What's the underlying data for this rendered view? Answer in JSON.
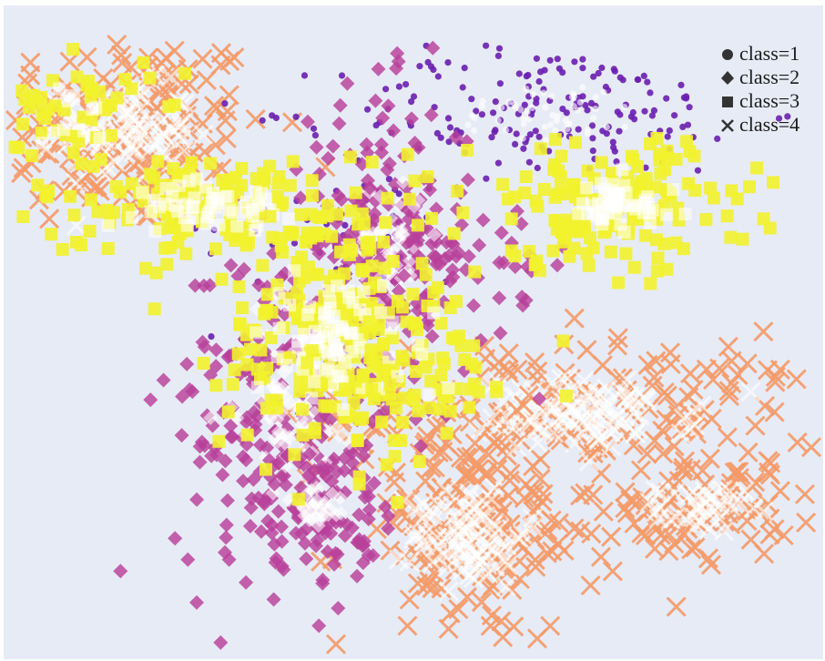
{
  "chart_data": {
    "type": "scatter",
    "title": "",
    "xlabel": "",
    "ylabel": "",
    "axes_visible": false,
    "grid": false,
    "legend": {
      "position": "top-right",
      "entries": [
        {
          "label": "class=1",
          "marker": "circle"
        },
        {
          "label": "class=2",
          "marker": "diamond"
        },
        {
          "label": "class=3",
          "marker": "square"
        },
        {
          "label": "class=4",
          "marker": "x"
        }
      ]
    },
    "colors": {
      "class=1": "#6a1fb0",
      "class=2": "#b8409a",
      "class=3": "#f2f22e",
      "class=4": "#f49a68",
      "background": "#e7ebf6"
    },
    "xlim": [
      0,
      100
    ],
    "ylim": [
      0,
      100
    ],
    "clusters": [
      {
        "series": "class=4",
        "cx": 14,
        "cy": 82,
        "sx": 9,
        "sy": 8,
        "n": 170,
        "core": 0.55
      },
      {
        "series": "class=4",
        "cx": 72,
        "cy": 37,
        "sx": 15,
        "sy": 6,
        "n": 190,
        "core": 0.55
      },
      {
        "series": "class=4",
        "cx": 86,
        "cy": 22,
        "sx": 6,
        "sy": 4,
        "n": 80,
        "core": 0.5
      },
      {
        "series": "class=4",
        "cx": 57,
        "cy": 18,
        "sx": 8,
        "sy": 9,
        "n": 170,
        "core": 0.55
      },
      {
        "series": "class=1",
        "cx": 67,
        "cy": 85,
        "sx": 13,
        "sy": 5,
        "n": 170,
        "core": 0.3
      },
      {
        "series": "class=1",
        "cx": 43,
        "cy": 66,
        "sx": 9,
        "sy": 7,
        "n": 60,
        "core": 0.1
      },
      {
        "series": "class=2",
        "cx": 47,
        "cy": 64,
        "sx": 5,
        "sy": 12,
        "n": 190,
        "core": 0.25
      },
      {
        "series": "class=2",
        "cx": 34,
        "cy": 38,
        "sx": 7,
        "sy": 14,
        "n": 220,
        "core": 0.25
      },
      {
        "series": "class=2",
        "cx": 38,
        "cy": 22,
        "sx": 4,
        "sy": 5,
        "n": 80,
        "core": 0.35
      },
      {
        "series": "class=2",
        "cx": 58,
        "cy": 58,
        "sx": 6,
        "sy": 7,
        "n": 40,
        "core": 0.0
      },
      {
        "series": "class=3",
        "cx": 7,
        "cy": 84,
        "sx": 5,
        "sy": 6,
        "n": 60,
        "core": 0.2
      },
      {
        "series": "class=3",
        "cx": 25,
        "cy": 70,
        "sx": 11,
        "sy": 4,
        "n": 150,
        "core": 0.35
      },
      {
        "series": "class=3",
        "cx": 40,
        "cy": 49,
        "sx": 7,
        "sy": 10,
        "n": 230,
        "core": 0.35
      },
      {
        "series": "class=3",
        "cx": 75,
        "cy": 70,
        "sx": 9,
        "sy": 5,
        "n": 160,
        "core": 0.35
      },
      {
        "series": "class=3",
        "cx": 52,
        "cy": 45,
        "sx": 7,
        "sy": 7,
        "n": 60,
        "core": 0.1
      }
    ]
  }
}
